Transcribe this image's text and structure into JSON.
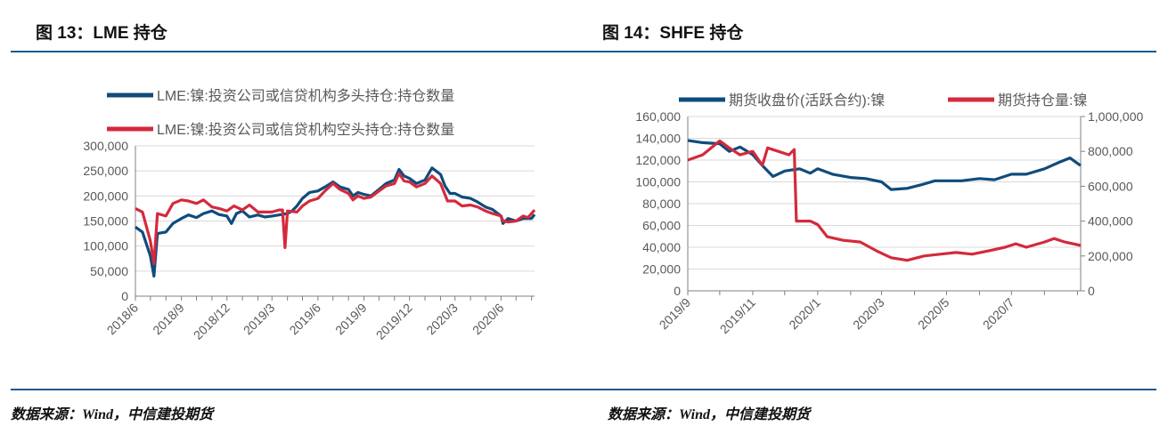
{
  "left_title": "图 13：LME 持仓",
  "right_title": "图 14：SHFE 持仓",
  "left_source": "数据来源：Wind，中信建投期货",
  "right_source": "数据来源：Wind，中信建投期货",
  "colors": {
    "blue": "#0f4c7d",
    "red": "#d42a3c",
    "rule": "#1d5a8c"
  },
  "chart_data": [
    {
      "type": "line",
      "title": "",
      "ylim": [
        0,
        300000
      ],
      "yticks": [
        "0",
        "50,000",
        "100,000",
        "150,000",
        "200,000",
        "250,000",
        "300,000"
      ],
      "xticks": [
        "2018/6",
        "2018/9",
        "2018/12",
        "2019/3",
        "2019/6",
        "2019/9",
        "2019/12",
        "2020/3",
        "2020/6"
      ],
      "xtick_dates": [
        "2018-06-01",
        "2018-09-01",
        "2018-12-01",
        "2019-03-01",
        "2019-06-01",
        "2019-09-01",
        "2019-12-01",
        "2020-03-01",
        "2020-06-01"
      ],
      "xrange": [
        "2018-06-01",
        "2020-08-07"
      ],
      "grid": true,
      "legend": "top",
      "series": [
        {
          "name": "LME:镍:投资公司或信贷机构多头持仓:持仓数量",
          "color": "#0f4c7d",
          "x": [
            "2018-06-01",
            "2018-06-15",
            "2018-07-01",
            "2018-07-08",
            "2018-07-15",
            "2018-08-01",
            "2018-08-15",
            "2018-09-01",
            "2018-09-15",
            "2018-10-01",
            "2018-10-15",
            "2018-11-01",
            "2018-11-15",
            "2018-12-01",
            "2018-12-10",
            "2018-12-20",
            "2019-01-01",
            "2019-01-15",
            "2019-02-01",
            "2019-02-15",
            "2019-03-01",
            "2019-03-15",
            "2019-04-01",
            "2019-04-10",
            "2019-04-20",
            "2019-05-01",
            "2019-05-15",
            "2019-06-01",
            "2019-06-15",
            "2019-07-01",
            "2019-07-15",
            "2019-08-01",
            "2019-08-10",
            "2019-08-20",
            "2019-09-01",
            "2019-09-15",
            "2019-10-01",
            "2019-10-15",
            "2019-11-01",
            "2019-11-10",
            "2019-11-20",
            "2019-12-01",
            "2019-12-15",
            "2020-01-01",
            "2020-01-15",
            "2020-02-01",
            "2020-02-10",
            "2020-02-20",
            "2020-03-01",
            "2020-03-15",
            "2020-04-01",
            "2020-04-15",
            "2020-05-01",
            "2020-05-15",
            "2020-06-01",
            "2020-06-05",
            "2020-06-15",
            "2020-07-01",
            "2020-07-15",
            "2020-08-01",
            "2020-08-07"
          ],
          "values": [
            138000,
            128000,
            80000,
            40000,
            125000,
            128000,
            145000,
            155000,
            162000,
            157000,
            165000,
            170000,
            163000,
            160000,
            145000,
            165000,
            170000,
            158000,
            162000,
            158000,
            160000,
            162000,
            165000,
            170000,
            180000,
            195000,
            207000,
            210000,
            218000,
            228000,
            218000,
            213000,
            200000,
            207000,
            203000,
            200000,
            213000,
            225000,
            232000,
            253000,
            240000,
            235000,
            225000,
            232000,
            256000,
            243000,
            220000,
            205000,
            205000,
            198000,
            195000,
            188000,
            178000,
            173000,
            160000,
            145000,
            155000,
            150000,
            155000,
            155000,
            163000
          ]
        },
        {
          "name": "LME:镍:投资公司或信贷机构空头持仓:持仓数量",
          "color": "#d42a3c",
          "x": [
            "2018-06-01",
            "2018-06-15",
            "2018-07-01",
            "2018-07-08",
            "2018-07-15",
            "2018-08-01",
            "2018-08-15",
            "2018-09-01",
            "2018-09-15",
            "2018-10-01",
            "2018-10-15",
            "2018-11-01",
            "2018-11-15",
            "2018-12-01",
            "2018-12-15",
            "2019-01-01",
            "2019-01-15",
            "2019-02-01",
            "2019-02-15",
            "2019-03-01",
            "2019-03-15",
            "2019-03-22",
            "2019-03-27",
            "2019-04-01",
            "2019-04-20",
            "2019-05-01",
            "2019-05-15",
            "2019-06-01",
            "2019-06-15",
            "2019-07-01",
            "2019-07-15",
            "2019-08-01",
            "2019-08-10",
            "2019-08-20",
            "2019-09-01",
            "2019-09-15",
            "2019-10-01",
            "2019-10-15",
            "2019-11-01",
            "2019-11-10",
            "2019-11-20",
            "2019-12-01",
            "2019-12-15",
            "2020-01-01",
            "2020-01-15",
            "2020-02-01",
            "2020-02-15",
            "2020-03-01",
            "2020-03-15",
            "2020-04-01",
            "2020-04-15",
            "2020-05-01",
            "2020-05-15",
            "2020-06-01",
            "2020-06-05",
            "2020-06-15",
            "2020-07-01",
            "2020-07-15",
            "2020-07-25",
            "2020-08-01",
            "2020-08-07"
          ],
          "values": [
            175000,
            168000,
            110000,
            65000,
            165000,
            160000,
            185000,
            192000,
            190000,
            185000,
            192000,
            178000,
            175000,
            170000,
            180000,
            172000,
            182000,
            168000,
            168000,
            168000,
            172000,
            172000,
            97000,
            170000,
            168000,
            180000,
            190000,
            195000,
            210000,
            225000,
            213000,
            205000,
            192000,
            200000,
            195000,
            198000,
            210000,
            220000,
            225000,
            245000,
            230000,
            228000,
            218000,
            225000,
            240000,
            225000,
            190000,
            190000,
            180000,
            182000,
            178000,
            170000,
            165000,
            160000,
            150000,
            148000,
            150000,
            160000,
            157000,
            165000,
            172000
          ]
        }
      ]
    },
    {
      "type": "line",
      "title": "",
      "ylim": [
        0,
        160000
      ],
      "y2lim": [
        0,
        1000000
      ],
      "yticks": [
        "0",
        "20,000",
        "40,000",
        "60,000",
        "80,000",
        "100,000",
        "120,000",
        "140,000",
        "160,000"
      ],
      "y2ticks": [
        "0",
        "200,000",
        "400,000",
        "600,000",
        "800,000",
        "1,000,000"
      ],
      "xticks": [
        "2019/9",
        "2019/11",
        "2020/1",
        "2020/3",
        "2020/5",
        "2020/7"
      ],
      "xtick_dates": [
        "2019-09-01",
        "2019-11-01",
        "2020-01-01",
        "2020-03-01",
        "2020-05-01",
        "2020-07-01"
      ],
      "xrange": [
        "2019-09-01",
        "2020-09-04"
      ],
      "grid": true,
      "legend": "top",
      "series": [
        {
          "name": "期货收盘价(活跃合约):镍",
          "color": "#0f4c7d",
          "axis": "left",
          "x": [
            "2019-09-01",
            "2019-09-15",
            "2019-10-01",
            "2019-10-10",
            "2019-10-20",
            "2019-11-01",
            "2019-11-10",
            "2019-11-20",
            "2019-12-01",
            "2019-12-15",
            "2019-12-25",
            "2020-01-01",
            "2020-01-15",
            "2020-02-01",
            "2020-02-15",
            "2020-03-01",
            "2020-03-10",
            "2020-03-25",
            "2020-04-10",
            "2020-04-20",
            "2020-05-01",
            "2020-05-15",
            "2020-06-01",
            "2020-06-15",
            "2020-07-01",
            "2020-07-15",
            "2020-08-01",
            "2020-08-15",
            "2020-08-25",
            "2020-09-01",
            "2020-09-04"
          ],
          "values": [
            138000,
            136000,
            135000,
            128000,
            132000,
            125000,
            115000,
            105000,
            110000,
            112000,
            108000,
            112000,
            107000,
            104000,
            103000,
            100000,
            93000,
            94000,
            98000,
            101000,
            101000,
            101000,
            103000,
            102000,
            107000,
            107000,
            112000,
            118000,
            122000,
            117000,
            115000
          ]
        },
        {
          "name": "期货持仓量:镍",
          "color": "#d42a3c",
          "axis": "right",
          "x": [
            "2019-09-01",
            "2019-09-15",
            "2019-10-01",
            "2019-10-10",
            "2019-10-20",
            "2019-11-01",
            "2019-11-10",
            "2019-11-15",
            "2019-11-25",
            "2019-12-05",
            "2019-12-10",
            "2019-12-12",
            "2019-12-25",
            "2020-01-01",
            "2020-01-10",
            "2020-01-25",
            "2020-02-10",
            "2020-02-25",
            "2020-03-10",
            "2020-03-25",
            "2020-04-10",
            "2020-04-25",
            "2020-05-10",
            "2020-05-25",
            "2020-06-10",
            "2020-06-25",
            "2020-07-05",
            "2020-07-15",
            "2020-08-01",
            "2020-08-10",
            "2020-08-20",
            "2020-09-04"
          ],
          "values": [
            750000,
            780000,
            860000,
            820000,
            780000,
            800000,
            720000,
            820000,
            800000,
            780000,
            810000,
            400000,
            400000,
            380000,
            310000,
            290000,
            280000,
            230000,
            190000,
            175000,
            200000,
            210000,
            220000,
            210000,
            230000,
            250000,
            270000,
            250000,
            280000,
            300000,
            280000,
            260000
          ]
        }
      ]
    }
  ]
}
